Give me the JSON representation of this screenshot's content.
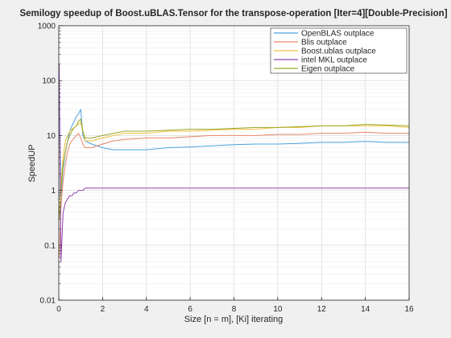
{
  "chart_data": {
    "type": "line",
    "title": "Semilogy speedup of Boost.uBLAS.Tensor for the transpose-operation [Iter=4][Double-Precision]",
    "xlabel": "Size [n = m], [Ki] iterating",
    "ylabel": "SpeedUP",
    "xlim": [
      0,
      16
    ],
    "ylim": [
      0.01,
      1000
    ],
    "yscale": "log",
    "grid": true,
    "legend_position": "top-right",
    "x_ticks": [
      "0",
      "2",
      "4",
      "6",
      "8",
      "10",
      "12",
      "14",
      "16"
    ],
    "y_ticks": [
      "0.01",
      "0.1",
      "1",
      "10",
      "100",
      "1000"
    ],
    "x": [
      0.02,
      0.1,
      0.2,
      0.3,
      0.4,
      0.5,
      0.6,
      0.7,
      0.8,
      0.9,
      1.0,
      1.1,
      1.2,
      1.5,
      2,
      2.5,
      3,
      4,
      5,
      6,
      7,
      8,
      9,
      10,
      11,
      12,
      13,
      14,
      15,
      16
    ],
    "series": [
      {
        "name": "OpenBLAS outplace",
        "color": "#4aa3df",
        "values": [
          50,
          0.8,
          2.5,
          5,
          8,
          12,
          15,
          18,
          22,
          25,
          30,
          10,
          8,
          7,
          6,
          5.5,
          5.5,
          5.5,
          6,
          6.2,
          6.5,
          6.8,
          7,
          7,
          7.2,
          7.5,
          7.5,
          7.8,
          7.5,
          7.5
        ]
      },
      {
        "name": "Blis outplace",
        "color": "#e8866a",
        "values": [
          0.06,
          0.5,
          1.5,
          3,
          5,
          7,
          8,
          9,
          10,
          11,
          9,
          7,
          6,
          6,
          7,
          8,
          8.5,
          9,
          9,
          9.5,
          10,
          10,
          10,
          10.5,
          10.5,
          11,
          11,
          11.5,
          11,
          11
        ]
      },
      {
        "name": "Boost.ublas outplace",
        "color": "#f0c040",
        "values": [
          0.3,
          1.5,
          4,
          8,
          10,
          12,
          13,
          14,
          15,
          16,
          17,
          12,
          8,
          8,
          9,
          10,
          11,
          11,
          12,
          12,
          12.5,
          13,
          13,
          14,
          14,
          15,
          15,
          15,
          15,
          14
        ]
      },
      {
        "name": "intel MKL outplace",
        "color": "#8e44ad",
        "values": [
          200,
          0.05,
          0.4,
          0.6,
          0.7,
          0.8,
          0.8,
          0.9,
          0.9,
          1,
          1,
          1,
          1.1,
          1.1,
          1.1,
          1.1,
          1.1,
          1.1,
          1.1,
          1.1,
          1.1,
          1.1,
          1.1,
          1.1,
          1.1,
          1.1,
          1.1,
          1.1,
          1.1,
          1.1
        ]
      },
      {
        "name": "Eigen outplace",
        "color": "#9aa82a",
        "values": [
          0.3,
          1,
          3,
          5,
          8,
          10,
          12,
          14,
          15,
          18,
          20,
          12,
          9,
          9,
          10,
          11,
          12,
          12,
          12.5,
          13,
          13,
          13.5,
          14,
          14,
          14.5,
          15,
          15,
          16,
          15.5,
          15
        ]
      }
    ]
  }
}
